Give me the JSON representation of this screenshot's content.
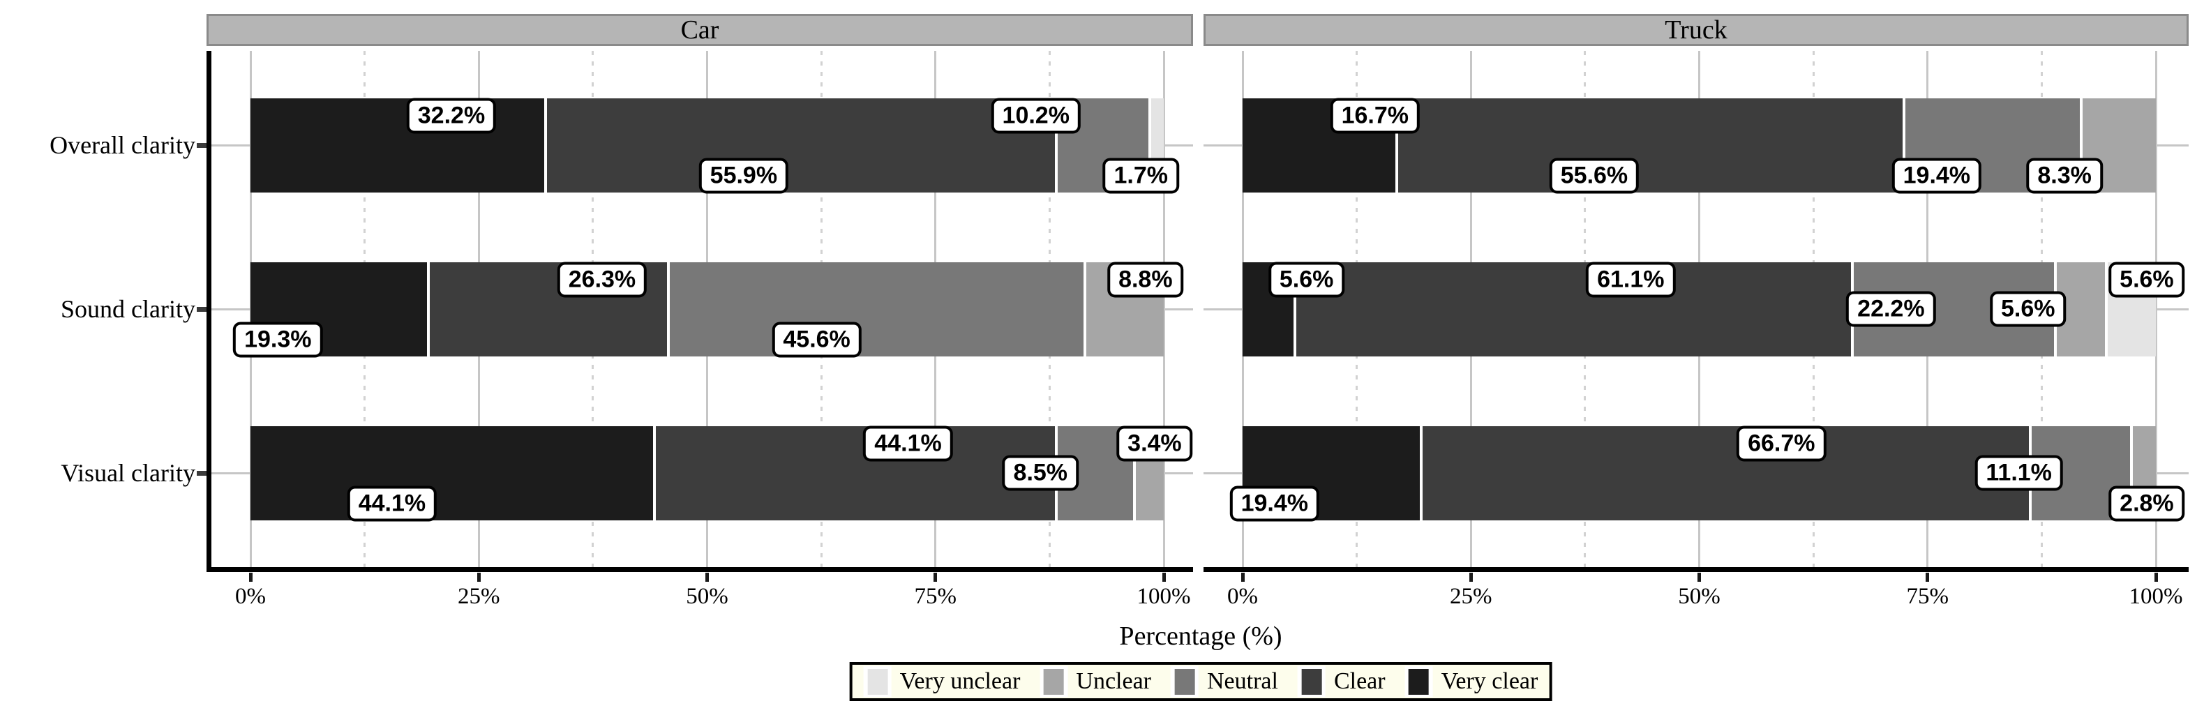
{
  "chart_data": {
    "type": "bar",
    "subtype": "horizontal-stacked-percentage",
    "xlabel": "Percentage (%)",
    "x_ticks": [
      "0%",
      "25%",
      "50%",
      "75%",
      "100%"
    ],
    "x_range": [
      0,
      100
    ],
    "categories": [
      "Overall clarity",
      "Sound clarity",
      "Visual clarity"
    ],
    "levels": [
      "Very unclear",
      "Unclear",
      "Neutral",
      "Clear",
      "Very clear"
    ],
    "legend_position": "bottom",
    "grid": {
      "major": "solid",
      "minor": "dashed",
      "major_at": [
        0,
        25,
        50,
        75,
        100
      ],
      "minor_at": [
        12.5,
        37.5,
        62.5,
        87.5
      ]
    },
    "facets": [
      {
        "label": "Car",
        "rows": [
          {
            "category": "Overall clarity",
            "segments": [
              {
                "level": "Very clear",
                "value": 32.2,
                "text": "32.2%",
                "label_x": 22,
                "label_level": "up"
              },
              {
                "level": "Clear",
                "value": 55.9,
                "text": "55.9%",
                "label_x": 54,
                "label_level": "down"
              },
              {
                "level": "Neutral",
                "value": 10.2,
                "text": "10.2%",
                "label_x": 86,
                "label_level": "up"
              },
              {
                "level": "Very unclear",
                "value": 1.7,
                "text": "1.7%",
                "label_x": 97.5,
                "label_level": "down"
              }
            ]
          },
          {
            "category": "Sound clarity",
            "segments": [
              {
                "level": "Very clear",
                "value": 19.3,
                "text": "19.3%",
                "label_x": 3,
                "label_level": "down"
              },
              {
                "level": "Clear",
                "value": 26.3,
                "text": "26.3%",
                "label_x": 38.5,
                "label_level": "up"
              },
              {
                "level": "Neutral",
                "value": 45.6,
                "text": "45.6%",
                "label_x": 62,
                "label_level": "down"
              },
              {
                "level": "Unclear",
                "value": 8.8,
                "text": "8.8%",
                "label_x": 98,
                "label_level": "up"
              }
            ]
          },
          {
            "category": "Visual clarity",
            "segments": [
              {
                "level": "Very clear",
                "value": 44.1,
                "text": "44.1%",
                "label_x": 15.5,
                "label_level": "down"
              },
              {
                "level": "Clear",
                "value": 44.1,
                "text": "44.1%",
                "label_x": 72,
                "label_level": "up"
              },
              {
                "level": "Neutral",
                "value": 8.5,
                "text": "8.5%",
                "label_x": 86.5,
                "label_level": "mid"
              },
              {
                "level": "Unclear",
                "value": 3.4,
                "text": "3.4%",
                "label_x": 99,
                "label_level": "up"
              }
            ]
          }
        ]
      },
      {
        "label": "Truck",
        "rows": [
          {
            "category": "Overall clarity",
            "segments": [
              {
                "level": "Very clear",
                "value": 16.7,
                "text": "16.7%",
                "label_x": 14.5,
                "label_level": "up"
              },
              {
                "level": "Clear",
                "value": 55.6,
                "text": "55.6%",
                "label_x": 38.5,
                "label_level": "down"
              },
              {
                "level": "Neutral",
                "value": 19.4,
                "text": "19.4%",
                "label_x": 76,
                "label_level": "down"
              },
              {
                "level": "Unclear",
                "value": 8.3,
                "text": "8.3%",
                "label_x": 90,
                "label_level": "down"
              }
            ]
          },
          {
            "category": "Sound clarity",
            "segments": [
              {
                "level": "Very clear",
                "value": 5.6,
                "text": "5.6%",
                "label_x": 7,
                "label_level": "up"
              },
              {
                "level": "Clear",
                "value": 61.1,
                "text": "61.1%",
                "label_x": 42.5,
                "label_level": "up"
              },
              {
                "level": "Neutral",
                "value": 22.2,
                "text": "22.2%",
                "label_x": 71,
                "label_level": "mid"
              },
              {
                "level": "Unclear",
                "value": 5.6,
                "text": "5.6%",
                "label_x": 86,
                "label_level": "mid"
              },
              {
                "level": "Very unclear",
                "value": 5.6,
                "text": "5.6%",
                "label_x": 99,
                "label_level": "up"
              }
            ]
          },
          {
            "category": "Visual clarity",
            "segments": [
              {
                "level": "Very clear",
                "value": 19.4,
                "text": "19.4%",
                "label_x": 3.5,
                "label_level": "down"
              },
              {
                "level": "Clear",
                "value": 66.7,
                "text": "66.7%",
                "label_x": 59,
                "label_level": "up"
              },
              {
                "level": "Neutral",
                "value": 11.1,
                "text": "11.1%",
                "label_x": 85,
                "label_level": "mid"
              },
              {
                "level": "Unclear",
                "value": 2.8,
                "text": "2.8%",
                "label_x": 99,
                "label_level": "down"
              }
            ]
          }
        ]
      }
    ]
  },
  "colors": {
    "levels": {
      "Very unclear": "#e4e4e4",
      "Unclear": "#a6a6a6",
      "Neutral": "#787878",
      "Clear": "#3d3d3d",
      "Very clear": "#1c1c1c"
    },
    "grid_major": "#c6c6c6",
    "grid_minor": "#d2d2d2",
    "strip_bg": "#b5b5b5",
    "strip_border": "#8a8a8a",
    "legend_bg": "#fdfdec",
    "axis": "#000000",
    "label_box_bg": "#ffffff",
    "label_box_border": "#000000"
  },
  "legend": {
    "items": [
      {
        "label": "Very unclear"
      },
      {
        "label": "Unclear"
      },
      {
        "label": "Neutral"
      },
      {
        "label": "Clear"
      },
      {
        "label": "Very clear"
      }
    ]
  }
}
